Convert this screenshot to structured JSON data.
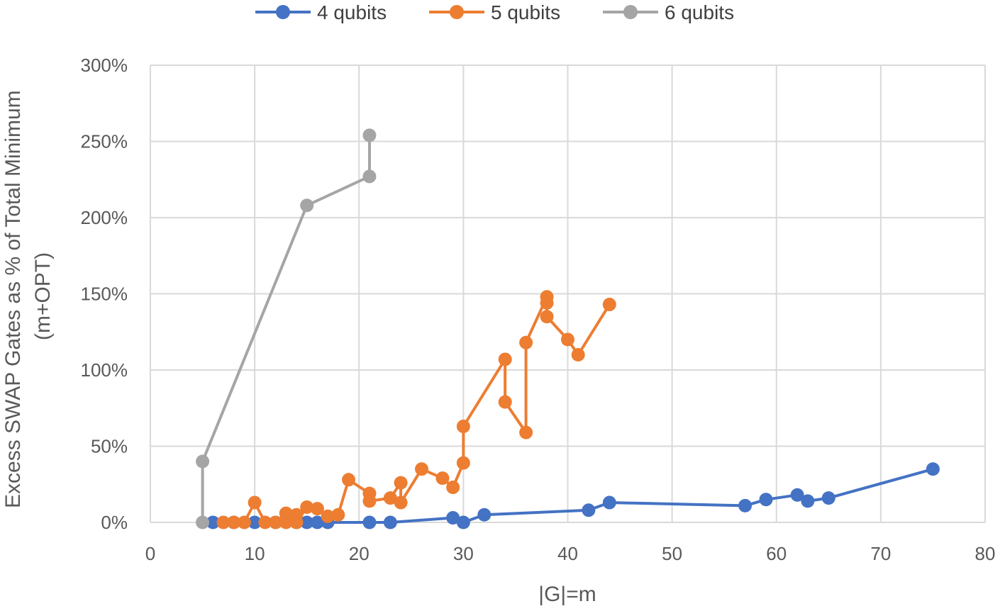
{
  "chart_data": {
    "type": "line",
    "title": "",
    "xlabel": "|G|=m",
    "ylabel_lines": [
      "Excess SWAP Gates as % of Total Minimum",
      "(m+OPT)"
    ],
    "xlim": [
      0,
      80
    ],
    "ylim": [
      0,
      300
    ],
    "x_ticks": [
      0,
      10,
      20,
      30,
      40,
      50,
      60,
      70,
      80
    ],
    "x_tick_labels": [
      "0",
      "10",
      "20",
      "30",
      "40",
      "50",
      "60",
      "70",
      "80"
    ],
    "y_ticks": [
      0,
      50,
      100,
      150,
      200,
      250,
      300
    ],
    "y_tick_labels": [
      "0%",
      "50%",
      "100%",
      "150%",
      "200%",
      "250%",
      "300%"
    ],
    "grid": true,
    "legend_position": "top",
    "series": [
      {
        "name": "4 qubits",
        "color": "#4472C4",
        "points": [
          [
            6,
            0
          ],
          [
            8,
            0
          ],
          [
            10,
            0
          ],
          [
            12,
            0
          ],
          [
            14,
            0
          ],
          [
            15,
            0
          ],
          [
            16,
            0
          ],
          [
            17,
            0
          ],
          [
            21,
            0
          ],
          [
            23,
            0
          ],
          [
            29,
            3
          ],
          [
            30,
            0
          ],
          [
            32,
            5
          ],
          [
            42,
            8
          ],
          [
            44,
            13
          ],
          [
            57,
            11
          ],
          [
            59,
            15
          ],
          [
            62,
            18
          ],
          [
            63,
            14
          ],
          [
            65,
            16
          ],
          [
            75,
            35
          ]
        ]
      },
      {
        "name": "5 qubits",
        "color": "#ED7D31",
        "points": [
          [
            7,
            0
          ],
          [
            8,
            0
          ],
          [
            9,
            0
          ],
          [
            10,
            13
          ],
          [
            11,
            0
          ],
          [
            12,
            0
          ],
          [
            13,
            6
          ],
          [
            13,
            0
          ],
          [
            14,
            5
          ],
          [
            14,
            0
          ],
          [
            15,
            10
          ],
          [
            16,
            9
          ],
          [
            17,
            4
          ],
          [
            18,
            5
          ],
          [
            19,
            28
          ],
          [
            21,
            19
          ],
          [
            21,
            14
          ],
          [
            23,
            16
          ],
          [
            24,
            26
          ],
          [
            24,
            13
          ],
          [
            26,
            35
          ],
          [
            28,
            29
          ],
          [
            29,
            23
          ],
          [
            30,
            39
          ],
          [
            30,
            63
          ],
          [
            34,
            107
          ],
          [
            34,
            79
          ],
          [
            36,
            59
          ],
          [
            36,
            118
          ],
          [
            38,
            148
          ],
          [
            38,
            144
          ],
          [
            38,
            135
          ],
          [
            40,
            120
          ],
          [
            41,
            110
          ],
          [
            44,
            143
          ]
        ]
      },
      {
        "name": "6 qubits",
        "color": "#A5A5A5",
        "points": [
          [
            5,
            0
          ],
          [
            5,
            40
          ],
          [
            15,
            208
          ],
          [
            21,
            227
          ],
          [
            21,
            254
          ]
        ]
      }
    ]
  }
}
